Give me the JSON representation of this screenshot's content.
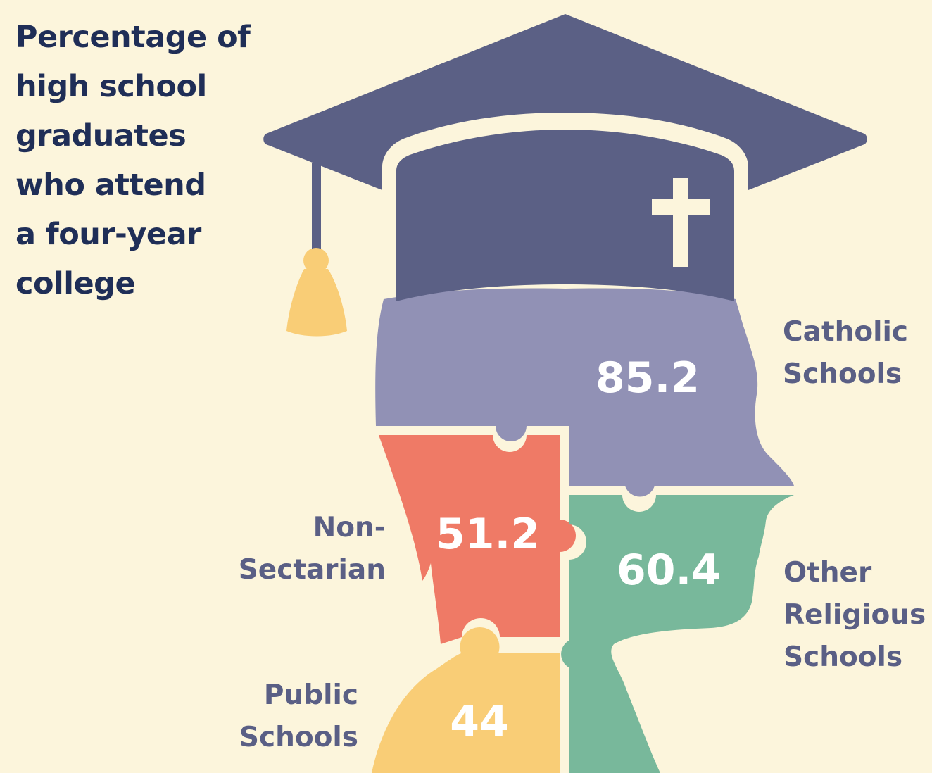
{
  "title_lines": [
    "Percentage of",
    "high school",
    "graduates",
    "who attend",
    "a four-year",
    "college"
  ],
  "colors": {
    "background": "#fcf5dc",
    "cap": "#5b6085",
    "catholic": "#9191b5",
    "non_sectarian": "#ef7a66",
    "other_religious": "#78b89b",
    "public": "#f9cd76",
    "title_text": "#1f2e57",
    "label_text": "#5a5f85"
  },
  "icons": [
    "graduation-cap-icon",
    "cross-icon",
    "tassel-icon"
  ],
  "chart_data": {
    "type": "pictorial-puzzle",
    "title": "Percentage of high school graduates who attend a four-year college",
    "categories": [
      {
        "id": "catholic",
        "label_lines": [
          "Catholic",
          "Schools"
        ],
        "value": 85.2,
        "value_text": "85.2"
      },
      {
        "id": "non_sectarian",
        "label_lines": [
          "Non-",
          "Sectarian"
        ],
        "value": 51.2,
        "value_text": "51.2"
      },
      {
        "id": "other_religious",
        "label_lines": [
          "Other",
          "Religious",
          "Schools"
        ],
        "value": 60.4,
        "value_text": "60.4"
      },
      {
        "id": "public",
        "label_lines": [
          "Public",
          "Schools"
        ],
        "value": 44,
        "value_text": "44"
      }
    ]
  }
}
